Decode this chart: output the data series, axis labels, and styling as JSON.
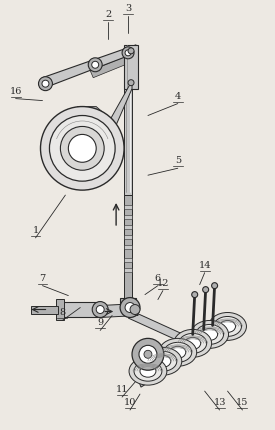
{
  "bg_color": "#ede9e3",
  "line_color": "#555555",
  "dark_color": "#2a2a2a",
  "gray1": "#c8c8c8",
  "gray2": "#b0b0b0",
  "gray3": "#888888",
  "white": "#ffffff",
  "figsize": [
    2.75,
    4.3
  ],
  "dpi": 100,
  "label_pairs": [
    [
      "1",
      35,
      235,
      65,
      195
    ],
    [
      "2",
      108,
      18,
      108,
      38
    ],
    [
      "3",
      128,
      12,
      128,
      32
    ],
    [
      "4",
      178,
      100,
      148,
      115
    ],
    [
      "5",
      178,
      165,
      148,
      175
    ],
    [
      "6",
      158,
      283,
      145,
      295
    ],
    [
      "7",
      42,
      283,
      68,
      296
    ],
    [
      "8",
      62,
      318,
      80,
      308
    ],
    [
      "9",
      100,
      328,
      112,
      316
    ],
    [
      "10",
      130,
      408,
      140,
      395
    ],
    [
      "11",
      122,
      395,
      135,
      383
    ],
    [
      "12",
      163,
      288,
      158,
      300
    ],
    [
      "13",
      220,
      408,
      205,
      392
    ],
    [
      "14",
      205,
      270,
      200,
      285
    ],
    [
      "15",
      243,
      408,
      228,
      392
    ],
    [
      "16",
      15,
      95,
      42,
      100
    ]
  ]
}
